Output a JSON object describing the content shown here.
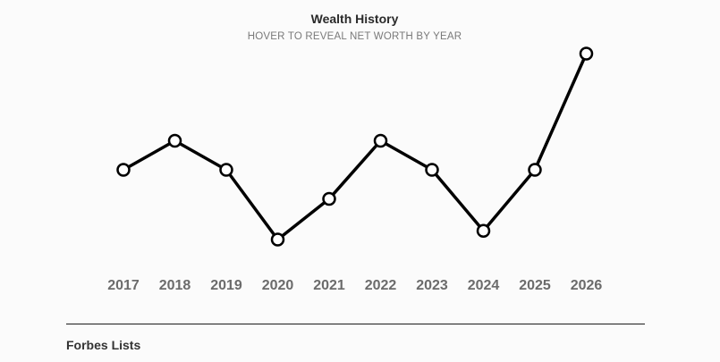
{
  "chart_data": {
    "type": "line",
    "title": "Wealth History",
    "subtitle": "HOVER TO REVEAL NET WORTH BY YEAR",
    "categories": [
      "2017",
      "2018",
      "2019",
      "2020",
      "2021",
      "2022",
      "2023",
      "2024",
      "2025",
      "2026"
    ],
    "series": [
      {
        "values": [
          4.0,
          5.0,
          4.0,
          1.6,
          3.0,
          5.0,
          4.0,
          1.9,
          4.0,
          8.0
        ]
      }
    ],
    "xlabel": "",
    "ylabel": "",
    "ylim": [
      0,
      8
    ],
    "grid": false,
    "legend": "none",
    "colors": {
      "line": "#000000",
      "marker_fill": "#ffffff",
      "tick_label": "#6b6b6b"
    }
  },
  "section": {
    "heading": "Forbes Lists"
  }
}
